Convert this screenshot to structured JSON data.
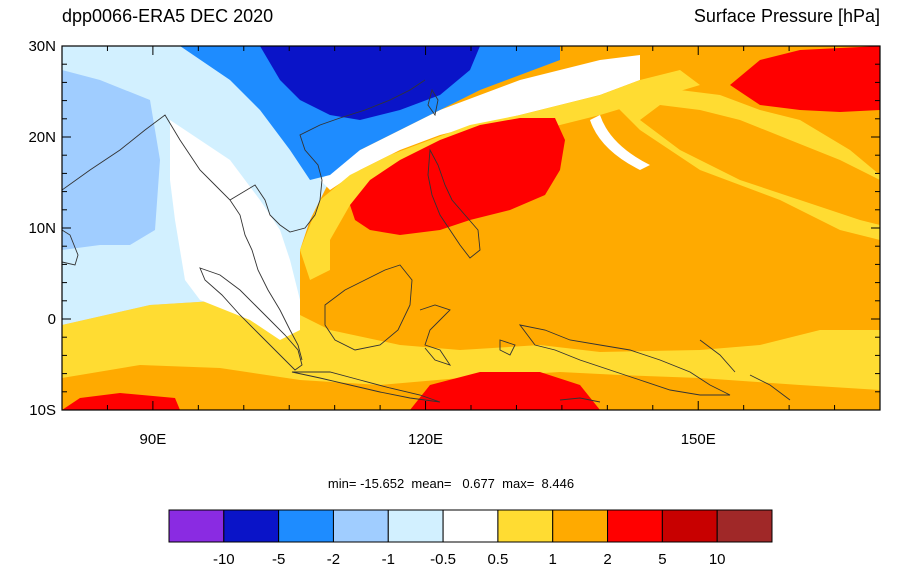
{
  "header": {
    "title_left": "dpp0066-ERA5 DEC 2020",
    "title_right": "Surface Pressure [hPa]"
  },
  "map": {
    "lat_labels": [
      "30N",
      "20N",
      "10N",
      "0",
      "10S"
    ],
    "lon_labels": [
      "90E",
      "120E",
      "150E"
    ],
    "lat_range": [
      -10,
      30
    ],
    "lon_range": [
      80,
      170
    ]
  },
  "stats": {
    "min_label": "min=",
    "min_value": "-15.652",
    "mean_label": "mean=",
    "mean_value": "0.677",
    "max_label": "max=",
    "max_value": "8.446"
  },
  "colorbar": {
    "colors": [
      "#8a2be2",
      "#0a14c8",
      "#1e8cff",
      "#a0cdff",
      "#d2f0ff",
      "#ffffff",
      "#ffdc32",
      "#ffaa00",
      "#ff0000",
      "#c80000",
      "#a02828"
    ],
    "labels": [
      "-10",
      "-5",
      "-2",
      "-1",
      "-0.5",
      "0.5",
      "1",
      "2",
      "5",
      "10"
    ]
  },
  "palette": {
    "land_outline": "#333333",
    "frame": "#000000"
  }
}
